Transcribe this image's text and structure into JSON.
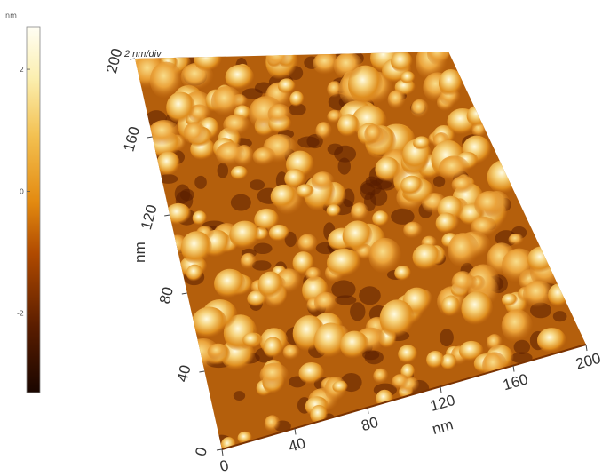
{
  "colorbar": {
    "unit": "nm",
    "ticks": [
      {
        "label": "2",
        "value": 2
      },
      {
        "label": "0",
        "value": 0
      },
      {
        "label": "-2",
        "value": -2
      }
    ],
    "range": [
      -3.3,
      2.7
    ],
    "colors": [
      "#1a0600",
      "#5a1d00",
      "#b04a00",
      "#e38a10",
      "#f3c050",
      "#fbefb0",
      "#fffef4"
    ]
  },
  "surface": {
    "vertical_scale": "2 nm/div",
    "x_axis": {
      "label": "nm",
      "ticks": [
        {
          "label": "0",
          "value": 0
        },
        {
          "label": "40",
          "value": 40
        },
        {
          "label": "80",
          "value": 80
        },
        {
          "label": "120",
          "value": 120
        },
        {
          "label": "160",
          "value": 160
        },
        {
          "label": "200",
          "value": 200
        }
      ]
    },
    "y_axis": {
      "label": "nm",
      "ticks": [
        {
          "label": "0",
          "value": 0
        },
        {
          "label": "40",
          "value": 40
        },
        {
          "label": "80",
          "value": 80
        },
        {
          "label": "120",
          "value": 120
        },
        {
          "label": "160",
          "value": 160
        },
        {
          "label": "200",
          "value": 200
        }
      ]
    }
  }
}
